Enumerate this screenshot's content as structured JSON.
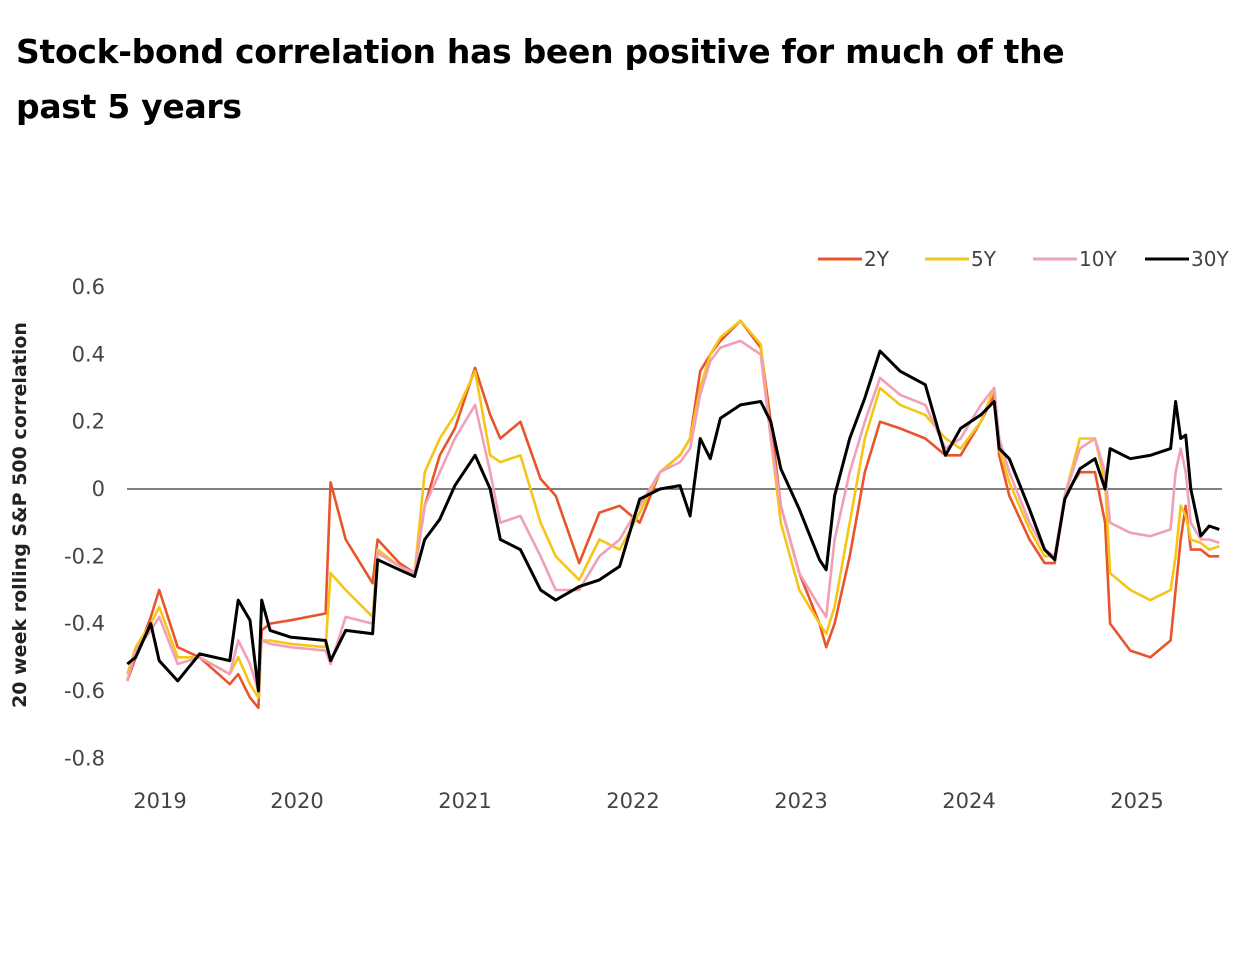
{
  "title": "Stock-bond correlation has been positive for much of the past 5 years",
  "chart_data": {
    "type": "line",
    "title": "Stock-bond correlation has been positive for much of the past 5 years",
    "xlabel": "",
    "ylabel": "20 week rolling S&P 500  correlation",
    "ylim": [
      -0.8,
      0.6
    ],
    "yticks": [
      0.6,
      0.4,
      0.2,
      0,
      -0.2,
      -0.4,
      -0.6,
      -0.8
    ],
    "ytick_labels": [
      "0.6",
      "0.4",
      "0.2",
      "0",
      "-0.2",
      "-0.4",
      "-0.6",
      "-0.8"
    ],
    "xlim": [
      2019,
      2025.6
    ],
    "xticks": [
      2019,
      2020,
      2021,
      2022,
      2023,
      2024,
      2025
    ],
    "xtick_labels": [
      "2019",
      "2020",
      "2021",
      "2022",
      "2023",
      "2024",
      "2025"
    ],
    "grid": false,
    "zero_line": true,
    "legend_position": "top-right",
    "x": [
      2018.99,
      2019.04,
      2019.13,
      2019.18,
      2019.29,
      2019.42,
      2019.6,
      2019.65,
      2019.72,
      2019.77,
      2019.79,
      2019.84,
      2019.96,
      2020.17,
      2020.2,
      2020.29,
      2020.45,
      2020.48,
      2020.61,
      2020.7,
      2020.76,
      2020.85,
      2020.94,
      2021.06,
      2021.15,
      2021.21,
      2021.33,
      2021.45,
      2021.54,
      2021.68,
      2021.8,
      2021.92,
      2022.04,
      2022.16,
      2022.28,
      2022.34,
      2022.4,
      2022.46,
      2022.52,
      2022.64,
      2022.76,
      2022.82,
      2022.88,
      2022.99,
      2023.11,
      2023.15,
      2023.2,
      2023.29,
      2023.38,
      2023.47,
      2023.59,
      2023.74,
      2023.86,
      2023.95,
      2024.07,
      2024.15,
      2024.18,
      2024.24,
      2024.36,
      2024.45,
      2024.51,
      2024.57,
      2024.66,
      2024.75,
      2024.81,
      2024.84,
      2024.96,
      2025.08,
      2025.2,
      2025.23,
      2025.26,
      2025.29,
      2025.32,
      2025.38,
      2025.43,
      2025.49
    ],
    "series": [
      {
        "name": "2Y",
        "color": "#e8542b",
        "values": [
          -0.57,
          -0.5,
          -0.38,
          -0.3,
          -0.47,
          -0.5,
          -0.58,
          -0.55,
          -0.62,
          -0.65,
          -0.42,
          -0.4,
          -0.39,
          -0.37,
          0.02,
          -0.15,
          -0.28,
          -0.15,
          -0.22,
          -0.25,
          -0.05,
          0.1,
          0.18,
          0.36,
          0.22,
          0.15,
          0.2,
          0.03,
          -0.02,
          -0.22,
          -0.07,
          -0.05,
          -0.1,
          0.05,
          0.1,
          0.15,
          0.35,
          0.4,
          0.44,
          0.5,
          0.42,
          0.2,
          -0.05,
          -0.25,
          -0.4,
          -0.47,
          -0.4,
          -0.2,
          0.05,
          0.2,
          0.18,
          0.15,
          0.1,
          0.1,
          0.2,
          0.28,
          0.1,
          -0.02,
          -0.15,
          -0.22,
          -0.22,
          -0.02,
          0.05,
          0.05,
          -0.1,
          -0.4,
          -0.48,
          -0.5,
          -0.45,
          -0.3,
          -0.15,
          -0.05,
          -0.18,
          -0.18,
          -0.2,
          -0.2
        ]
      },
      {
        "name": "5Y",
        "color": "#f5c518",
        "values": [
          -0.55,
          -0.47,
          -0.4,
          -0.35,
          -0.5,
          -0.5,
          -0.55,
          -0.5,
          -0.58,
          -0.62,
          -0.45,
          -0.45,
          -0.46,
          -0.47,
          -0.25,
          -0.3,
          -0.38,
          -0.18,
          -0.23,
          -0.25,
          0.05,
          0.15,
          0.22,
          0.35,
          0.1,
          0.08,
          0.1,
          -0.1,
          -0.2,
          -0.27,
          -0.15,
          -0.18,
          -0.07,
          0.05,
          0.1,
          0.15,
          0.3,
          0.4,
          0.45,
          0.5,
          0.43,
          0.15,
          -0.1,
          -0.3,
          -0.4,
          -0.43,
          -0.35,
          -0.1,
          0.15,
          0.3,
          0.25,
          0.22,
          0.15,
          0.12,
          0.2,
          0.3,
          0.12,
          0.02,
          -0.12,
          -0.2,
          -0.2,
          -0.02,
          0.15,
          0.15,
          0.02,
          -0.25,
          -0.3,
          -0.33,
          -0.3,
          -0.2,
          -0.05,
          -0.08,
          -0.15,
          -0.16,
          -0.18,
          -0.17
        ]
      },
      {
        "name": "10Y",
        "color": "#f0a0b8",
        "values": [
          -0.57,
          -0.48,
          -0.42,
          -0.38,
          -0.52,
          -0.5,
          -0.55,
          -0.45,
          -0.52,
          -0.6,
          -0.45,
          -0.46,
          -0.47,
          -0.48,
          -0.52,
          -0.38,
          -0.4,
          -0.19,
          -0.23,
          -0.25,
          -0.05,
          0.05,
          0.15,
          0.25,
          0.05,
          -0.1,
          -0.08,
          -0.2,
          -0.3,
          -0.3,
          -0.2,
          -0.15,
          -0.05,
          0.05,
          0.08,
          0.12,
          0.28,
          0.38,
          0.42,
          0.44,
          0.4,
          0.15,
          -0.05,
          -0.25,
          -0.35,
          -0.38,
          -0.15,
          0.05,
          0.2,
          0.33,
          0.28,
          0.25,
          0.12,
          0.15,
          0.25,
          0.3,
          0.15,
          0.05,
          -0.1,
          -0.18,
          -0.2,
          -0.02,
          0.12,
          0.15,
          0.05,
          -0.1,
          -0.13,
          -0.14,
          -0.12,
          0.05,
          0.12,
          0.05,
          -0.1,
          -0.15,
          -0.15,
          -0.16
        ]
      },
      {
        "name": "30Y",
        "color": "#000000",
        "values": [
          -0.52,
          -0.5,
          -0.4,
          -0.51,
          -0.57,
          -0.49,
          -0.51,
          -0.33,
          -0.39,
          -0.6,
          -0.33,
          -0.42,
          -0.44,
          -0.45,
          -0.51,
          -0.42,
          -0.43,
          -0.21,
          -0.24,
          -0.26,
          -0.15,
          -0.09,
          0.01,
          0.1,
          0.0,
          -0.15,
          -0.18,
          -0.3,
          -0.33,
          -0.29,
          -0.27,
          -0.23,
          -0.03,
          0.0,
          0.01,
          -0.08,
          0.15,
          0.09,
          0.21,
          0.25,
          0.26,
          0.2,
          0.06,
          -0.06,
          -0.21,
          -0.24,
          -0.02,
          0.15,
          0.27,
          0.41,
          0.35,
          0.31,
          0.1,
          0.18,
          0.22,
          0.26,
          0.12,
          0.09,
          -0.06,
          -0.18,
          -0.21,
          -0.03,
          0.06,
          0.09,
          0.0,
          0.12,
          0.09,
          0.1,
          0.12,
          0.26,
          0.15,
          0.16,
          0.0,
          -0.14,
          -0.11,
          -0.12
        ]
      }
    ]
  }
}
